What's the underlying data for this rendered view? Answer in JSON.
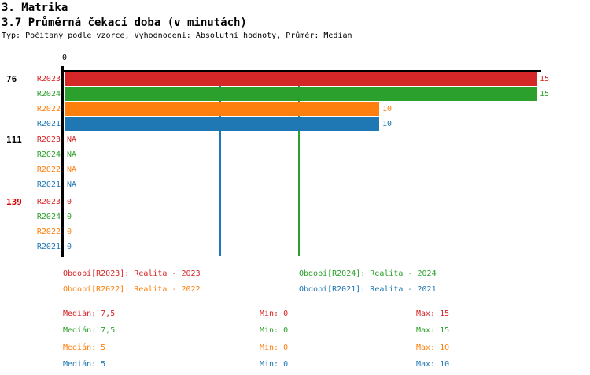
{
  "header": {
    "title": "3. Matrika",
    "subtitle": "3.7 Průměrná čekací doba (v minutách)",
    "meta": "Typ: Počítaný podle vzorce, Vyhodnocení: Absolutní hodnoty, Průměr: Medián"
  },
  "chart_data": {
    "type": "bar",
    "orientation": "horizontal",
    "title": "3.7 Průměrná čekací doba (v minutách)",
    "x_axis": {
      "origin_label": "0",
      "min": 0,
      "max": 15,
      "grid": "median-lines-only"
    },
    "series": [
      {
        "id": "R2023",
        "name": "Realita - 2023",
        "color": "#d62728",
        "median": 7.5,
        "min": 0,
        "max": 15
      },
      {
        "id": "R2024",
        "name": "Realita - 2024",
        "color": "#2ca02c",
        "median": 7.5,
        "min": 0,
        "max": 15
      },
      {
        "id": "R2022",
        "name": "Realita - 2022",
        "color": "#ff7f0e",
        "median": 5,
        "min": 0,
        "max": 10
      },
      {
        "id": "R2021",
        "name": "Realita - 2021",
        "color": "#1f77b4",
        "median": 5,
        "min": 0,
        "max": 10
      }
    ],
    "groups": [
      {
        "label": "76",
        "label_color": "#000000",
        "rows": [
          {
            "series": "R2023",
            "value": 15,
            "display": "15"
          },
          {
            "series": "R2024",
            "value": 15,
            "display": "15"
          },
          {
            "series": "R2022",
            "value": 10,
            "display": "10"
          },
          {
            "series": "R2021",
            "value": 10,
            "display": "10"
          }
        ]
      },
      {
        "label": "111",
        "label_color": "#000000",
        "rows": [
          {
            "series": "R2023",
            "value": null,
            "display": "NA"
          },
          {
            "series": "R2024",
            "value": null,
            "display": "NA"
          },
          {
            "series": "R2022",
            "value": null,
            "display": "NA"
          },
          {
            "series": "R2021",
            "value": null,
            "display": "NA"
          }
        ]
      },
      {
        "label": "139",
        "label_color": "#dd0000",
        "rows": [
          {
            "series": "R2023",
            "value": 0,
            "display": "0"
          },
          {
            "series": "R2024",
            "value": 0,
            "display": "0"
          },
          {
            "series": "R2022",
            "value": 0,
            "display": "0"
          },
          {
            "series": "R2021",
            "value": 0,
            "display": "0"
          }
        ]
      }
    ]
  },
  "legend": {
    "rows": [
      {
        "left": {
          "label": "Období[R2023]: Realita - 2023",
          "color": "#d62728"
        },
        "right": {
          "label": "Období[R2024]: Realita - 2024",
          "color": "#2ca02c"
        }
      },
      {
        "left": {
          "label": "Období[R2022]: Realita - 2022",
          "color": "#ff7f0e"
        },
        "right": {
          "label": "Období[R2021]: Realita - 2021",
          "color": "#1f77b4"
        }
      }
    ]
  },
  "stats": {
    "rows": [
      {
        "color": "#d62728",
        "median": "Medián: 7,5",
        "min": "Min: 0",
        "max": "Max: 15"
      },
      {
        "color": "#2ca02c",
        "median": "Medián: 7,5",
        "min": "Min: 0",
        "max": "Max: 15"
      },
      {
        "color": "#ff7f0e",
        "median": "Medián: 5",
        "min": "Min: 0",
        "max": "Max: 10"
      },
      {
        "color": "#1f77b4",
        "median": "Medián: 5",
        "min": "Min: 0",
        "max": "Max: 10"
      }
    ]
  }
}
